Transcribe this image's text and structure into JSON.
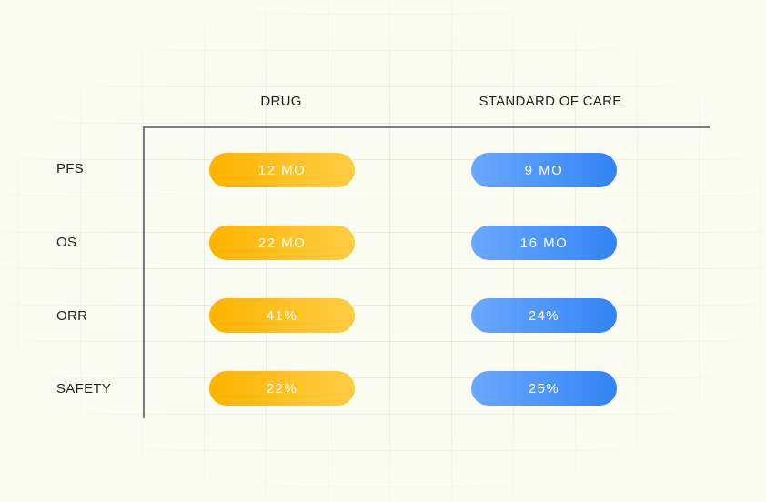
{
  "columns": {
    "drug": "DRUG",
    "soc": "STANDARD OF CARE"
  },
  "colors": {
    "drug": "#ffb300",
    "soc": "#3384f5",
    "axis": "#7a7a80",
    "background": "#fbfcf1"
  },
  "rows": [
    {
      "label": "PFS",
      "drug": "12 MO",
      "soc": "9 MO"
    },
    {
      "label": "OS",
      "drug": "22 MO",
      "soc": "16 MO"
    },
    {
      "label": "ORR",
      "drug": "41%",
      "soc": "24%"
    },
    {
      "label": "SAFETY",
      "drug": "22%",
      "soc": "25%"
    }
  ]
}
